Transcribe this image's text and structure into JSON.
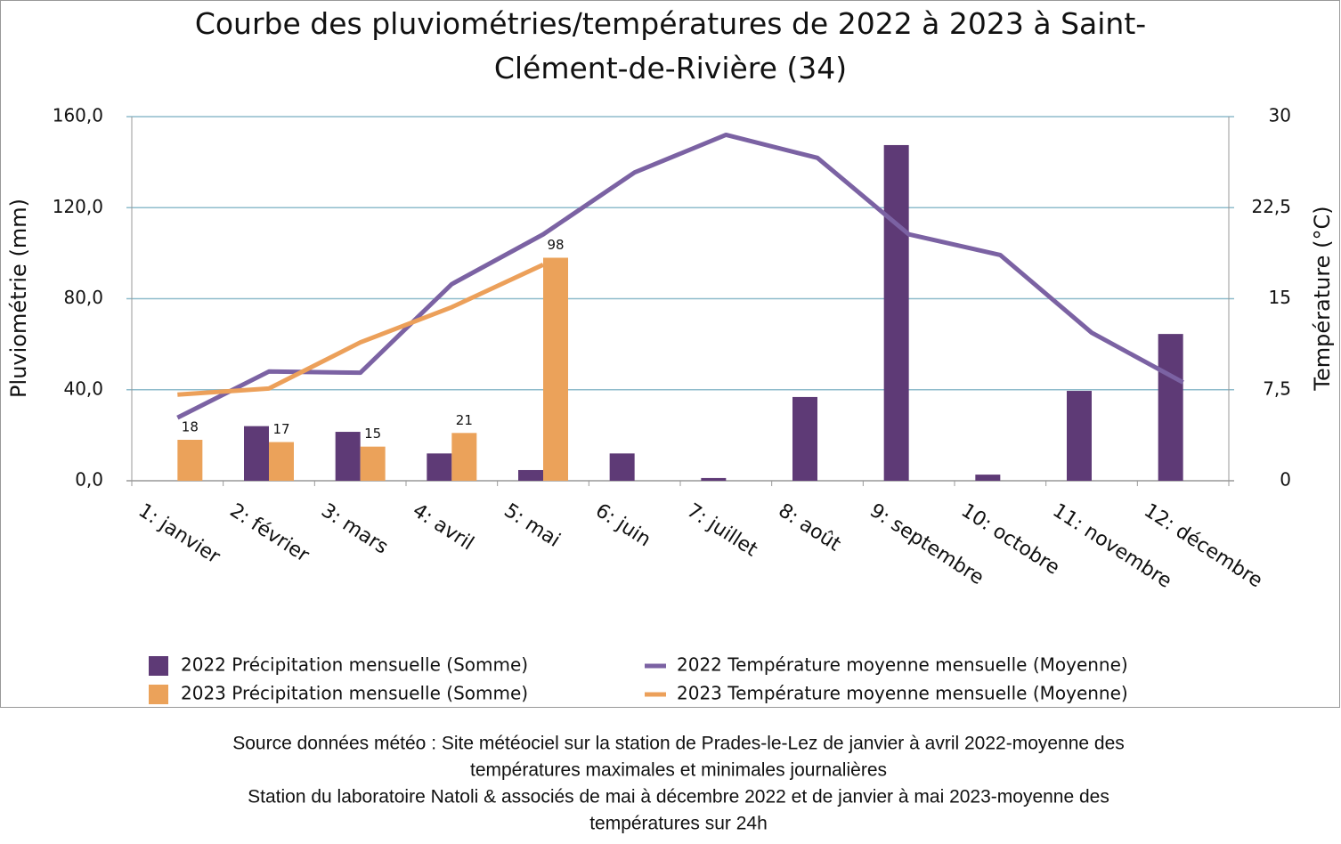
{
  "chart_data": {
    "type": "bar",
    "title": "Courbe des pluviométries/températures de 2022 à 2023 à Saint-Clément-de-Rivière (34)",
    "y_label": "Pluviométrie (mm)",
    "y2_label": "Température (°C)",
    "categories": [
      "1: janvier",
      "2: février",
      "3: mars",
      "4: avril",
      "5: mai",
      "6: juin",
      "7: juillet",
      "8: août",
      "9: septembre",
      "10: octobre",
      "11: novembre",
      "12: décembre"
    ],
    "series": [
      {
        "name": "2022 Précipitation mensuelle (Somme)",
        "type": "bar",
        "axis": "y",
        "color": "#5e3a76",
        "values": [
          0,
          24,
          21.5,
          12,
          4.7,
          12,
          1.2,
          36.8,
          147.5,
          2.7,
          39.5,
          64.5
        ]
      },
      {
        "name": "2023 Précipitation mensuelle (Somme)",
        "type": "bar",
        "axis": "y",
        "color": "#eba25a",
        "data_labels": true,
        "values": [
          18,
          17,
          15,
          21,
          98,
          null,
          null,
          null,
          null,
          null,
          null,
          null
        ]
      },
      {
        "name": "2022 Température moyenne mensuelle (Moyenne)",
        "type": "line",
        "axis": "y2",
        "color": "#7b62a3",
        "values": [
          5.2,
          9.0,
          8.9,
          16.2,
          20.3,
          25.4,
          28.5,
          26.6,
          20.3,
          18.6,
          12.2,
          8.1
        ]
      },
      {
        "name": "2023 Température moyenne mensuelle (Moyenne)",
        "type": "line",
        "axis": "y2",
        "color": "#eca05a",
        "values": [
          7.1,
          7.6,
          11.4,
          14.3,
          17.8,
          null,
          null,
          null,
          null,
          null,
          null,
          null
        ]
      }
    ],
    "ylim": [
      0,
      160
    ],
    "yticks": [
      {
        "value": 0,
        "label": "0,0"
      },
      {
        "value": 40,
        "label": "40,0"
      },
      {
        "value": 80,
        "label": "80,0"
      },
      {
        "value": 120,
        "label": "120,0"
      },
      {
        "value": 160,
        "label": "160,0"
      }
    ],
    "y2lim": [
      0,
      30
    ],
    "y2ticks": [
      0,
      {
        "value": 7.5,
        "label": "7,5"
      },
      15,
      {
        "value": 22.5,
        "label": "22,5"
      },
      30
    ],
    "grid": true,
    "legend": "bottom",
    "source": [
      "Source données météo : Site météociel sur la station de Prades-le-Lez de janvier à avril 2022-moyenne des",
      "températures maximales et minimales journalières",
      "Station du laboratoire Natoli & associés  de mai à décembre 2022 et de janvier à mai 2023-moyenne des",
      "températures sur 24h"
    ]
  }
}
